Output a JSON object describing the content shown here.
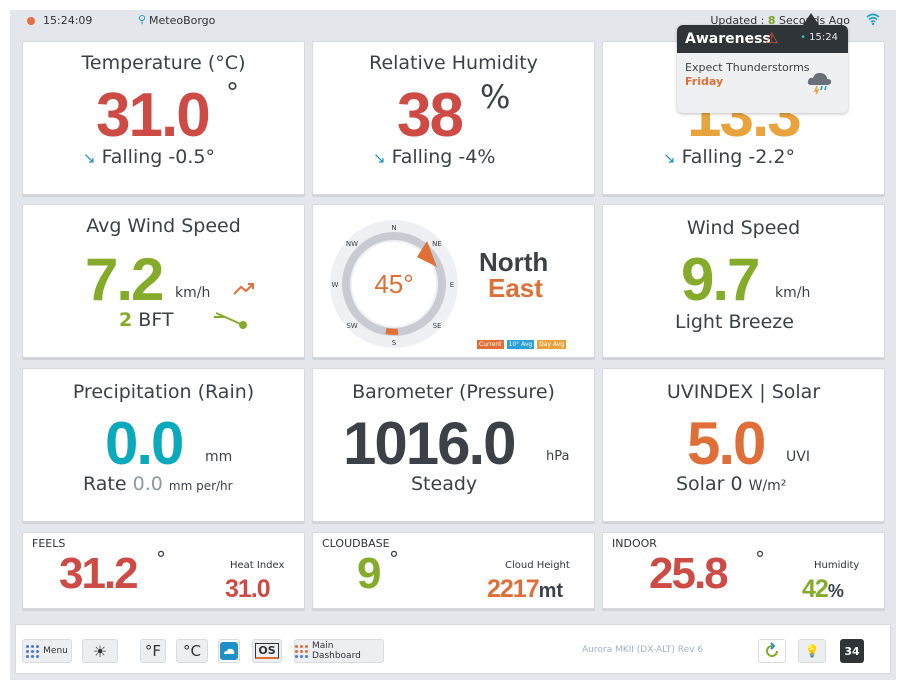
{
  "topbar": {
    "time": "15:24:09",
    "station": "MeteoBorgo",
    "updated_prefix": "Updated : ",
    "updated_value": "8",
    "updated_suffix": " Seconds Ago"
  },
  "temperature": {
    "title": "Temperature (°C)",
    "value": "31.0",
    "deg": "°",
    "trend": "Falling -0.5°"
  },
  "humidity": {
    "title": "Relative Humidity",
    "value": "38",
    "unit": "%",
    "trend": "Falling -4%"
  },
  "dewpoint": {
    "value": "13.3",
    "trend": "Falling -2.2°"
  },
  "avg_wind": {
    "title": "Avg Wind Speed",
    "value": "7.2",
    "unit": "km/h",
    "bft_num": "2",
    "bft_label": "BFT"
  },
  "compass": {
    "degrees": "45°",
    "dir_line1": "North",
    "dir_line2": "East",
    "points": {
      "n": "N",
      "ne": "NE",
      "e": "E",
      "se": "SE",
      "s": "S",
      "sw": "SW",
      "w": "W",
      "nw": "NW"
    },
    "legend": {
      "current": "Current",
      "avg10": "10° Avg",
      "dayavg": "Day Avg"
    },
    "colors": {
      "current": "#df6f37",
      "avg10": "#2aa0d8",
      "dayavg": "#e8a33c"
    }
  },
  "wind_speed": {
    "title": "Wind Speed",
    "value": "9.7",
    "unit": "km/h",
    "desc": "Light Breeze"
  },
  "precip": {
    "title": "Precipitation (Rain)",
    "value": "0.0",
    "unit": "mm",
    "rate_label": "Rate",
    "rate_value": "0.0",
    "rate_unit": "mm per/hr"
  },
  "barometer": {
    "title": "Barometer (Pressure)",
    "value": "1016.0",
    "unit": "hPa",
    "trend": "Steady"
  },
  "uv": {
    "title": "UVINDEX | Solar",
    "value": "5.0",
    "unit": "UVI",
    "solar_label": "Solar",
    "solar_value": "0",
    "solar_unit": "W/m²"
  },
  "feels": {
    "label": "FEELS",
    "value": "31.2",
    "deg": "°",
    "caption": "Heat Index",
    "sub_value": "31.0"
  },
  "cloudbase": {
    "label": "CLOUDBASE",
    "value": "9",
    "deg": "°",
    "caption": "Cloud Height",
    "sub_value": "2217",
    "sub_unit": "mt"
  },
  "indoor": {
    "label": "INDOOR",
    "value": "25.8",
    "deg": "°",
    "caption": "Humidity",
    "sub_value": "42",
    "sub_unit": "%"
  },
  "toolbar": {
    "menu": "Menu",
    "f": "°F",
    "c": "°C",
    "os": "OS",
    "main": "Main Dashboard",
    "version": "Aurora MKII (DX-ALT) Rev 6",
    "badge": "34"
  },
  "popup": {
    "title": "Awareness",
    "time": "15:24",
    "message": "Expect Thunderstorms",
    "day": "Friday"
  }
}
